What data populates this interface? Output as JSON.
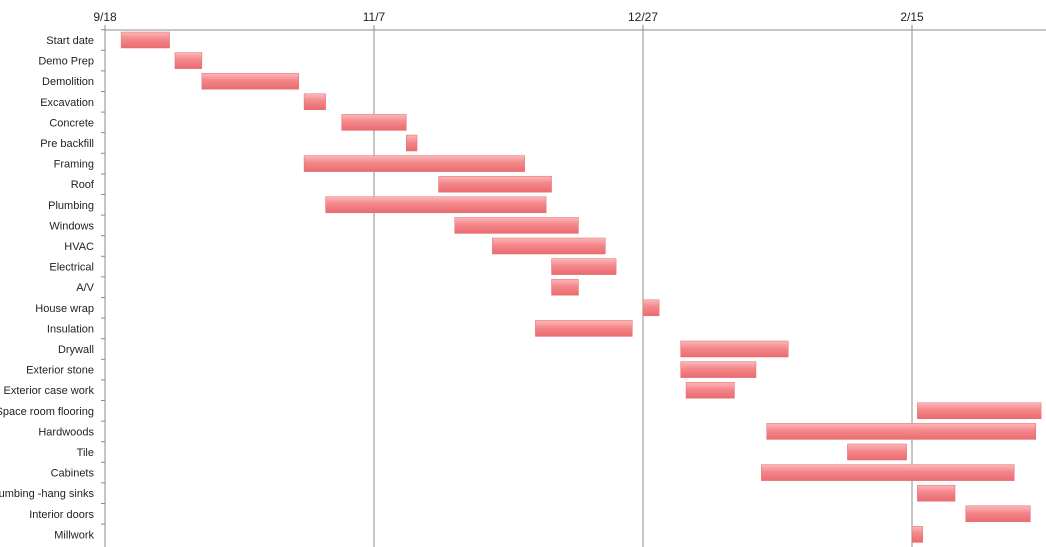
{
  "chart_data": {
    "type": "bar",
    "orientation": "horizontal-gantt",
    "title": "",
    "xlabel": "",
    "ylabel": "",
    "x_axis_position": "top",
    "grid": true,
    "legend": "none",
    "bar_color": "#f4878a",
    "bar_highlight": "#fbb8ba",
    "x_ticks": [
      "9/18",
      "11/7",
      "12/27",
      "2/15"
    ],
    "tasks": [
      {
        "name": "Start date",
        "start": "9/21",
        "end": "9/30"
      },
      {
        "name": "Demo Prep",
        "start": "10/1",
        "end": "10/6"
      },
      {
        "name": "Demolition",
        "start": "10/6",
        "end": "10/24"
      },
      {
        "name": "Excavation",
        "start": "10/25",
        "end": "10/29"
      },
      {
        "name": "Concrete",
        "start": "11/1",
        "end": "11/13"
      },
      {
        "name": "Pre backfill",
        "start": "11/13",
        "end": "11/15"
      },
      {
        "name": "Framing",
        "start": "10/25",
        "end": "12/5"
      },
      {
        "name": "Roof",
        "start": "11/19",
        "end": "12/10"
      },
      {
        "name": "Plumbing",
        "start": "10/29",
        "end": "12/9"
      },
      {
        "name": "Windows",
        "start": "11/22",
        "end": "12/15"
      },
      {
        "name": "HVAC",
        "start": "11/29",
        "end": "12/20"
      },
      {
        "name": "Electrical",
        "start": "12/10",
        "end": "12/22"
      },
      {
        "name": "A/V",
        "start": "12/10",
        "end": "12/15"
      },
      {
        "name": "House wrap",
        "start": "12/27",
        "end": "12/30"
      },
      {
        "name": "Insulation",
        "start": "12/7",
        "end": "12/25"
      },
      {
        "name": "Drywall",
        "start": "1/3",
        "end": "1/23"
      },
      {
        "name": "Exterior stone",
        "start": "1/3",
        "end": "1/17"
      },
      {
        "name": "Exterior case work",
        "start": "1/4",
        "end": "1/13"
      },
      {
        "name": "Space room flooring",
        "start": "2/16",
        "end": "3/11"
      },
      {
        "name": "Hardwoods",
        "start": "1/19",
        "end": "3/10"
      },
      {
        "name": "Tile",
        "start": "2/3",
        "end": "2/14"
      },
      {
        "name": "Cabinets",
        "start": "1/18",
        "end": "3/6"
      },
      {
        "name": "Plumbing -hang sinks",
        "start": "2/16",
        "end": "2/23"
      },
      {
        "name": "Interior doors",
        "start": "2/25",
        "end": "3/9"
      },
      {
        "name": "Millwork",
        "start": "2/15",
        "end": "2/17"
      }
    ]
  }
}
